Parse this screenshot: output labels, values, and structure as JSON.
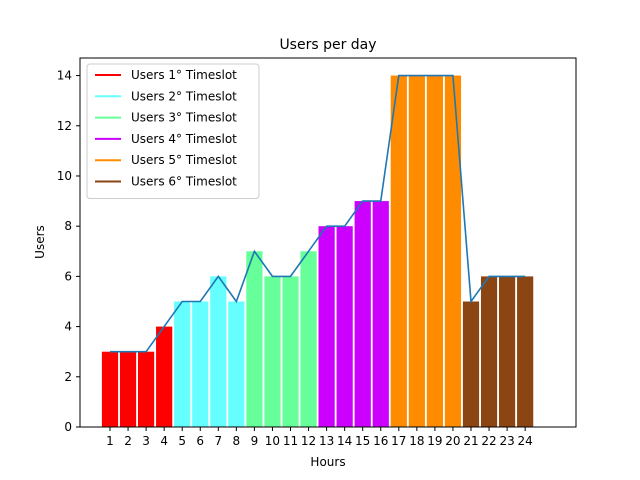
{
  "chart_data": {
    "type": "bar",
    "title": "Users per day",
    "xlabel": "Hours",
    "ylabel": "Users",
    "ylim": [
      0,
      14.7
    ],
    "yticks": [
      0,
      2,
      4,
      6,
      8,
      10,
      12,
      14
    ],
    "categories": [
      "1",
      "2",
      "3",
      "4",
      "5",
      "6",
      "7",
      "8",
      "9",
      "10",
      "11",
      "12",
      "13",
      "14",
      "15",
      "16",
      "17",
      "18",
      "19",
      "20",
      "21",
      "22",
      "23",
      "24"
    ],
    "values": [
      3,
      3,
      3,
      4,
      5,
      5,
      6,
      5,
      7,
      6,
      6,
      7,
      8,
      8,
      9,
      9,
      14,
      14,
      14,
      14,
      5,
      6,
      6,
      6
    ],
    "bar_colors": [
      "#ff0000",
      "#ff0000",
      "#ff0000",
      "#ff0000",
      "#66ffff",
      "#66ffff",
      "#66ffff",
      "#66ffff",
      "#66ff99",
      "#66ff99",
      "#66ff99",
      "#66ff99",
      "#cc00ff",
      "#cc00ff",
      "#cc00ff",
      "#cc00ff",
      "#ff8c00",
      "#ff8c00",
      "#ff8c00",
      "#ff8c00",
      "#8b4513",
      "#8b4513",
      "#8b4513",
      "#8b4513"
    ],
    "line": {
      "color": "#1f77b4",
      "values": [
        3,
        3,
        3,
        4,
        5,
        5,
        6,
        5,
        7,
        6,
        6,
        7,
        8,
        8,
        9,
        9,
        14,
        14,
        14,
        14,
        5,
        6,
        6,
        6
      ]
    },
    "legend": {
      "placement": "top-left",
      "entries": [
        {
          "label": "Users 1° Timeslot",
          "color": "#ff0000"
        },
        {
          "label": "Users 2° Timeslot",
          "color": "#66ffff"
        },
        {
          "label": "Users 3° Timeslot",
          "color": "#66ff99"
        },
        {
          "label": "Users 4° Timeslot",
          "color": "#cc00ff"
        },
        {
          "label": "Users 5° Timeslot",
          "color": "#ff8c00"
        },
        {
          "label": "Users 6° Timeslot",
          "color": "#8b4513"
        }
      ]
    },
    "grid": false
  }
}
